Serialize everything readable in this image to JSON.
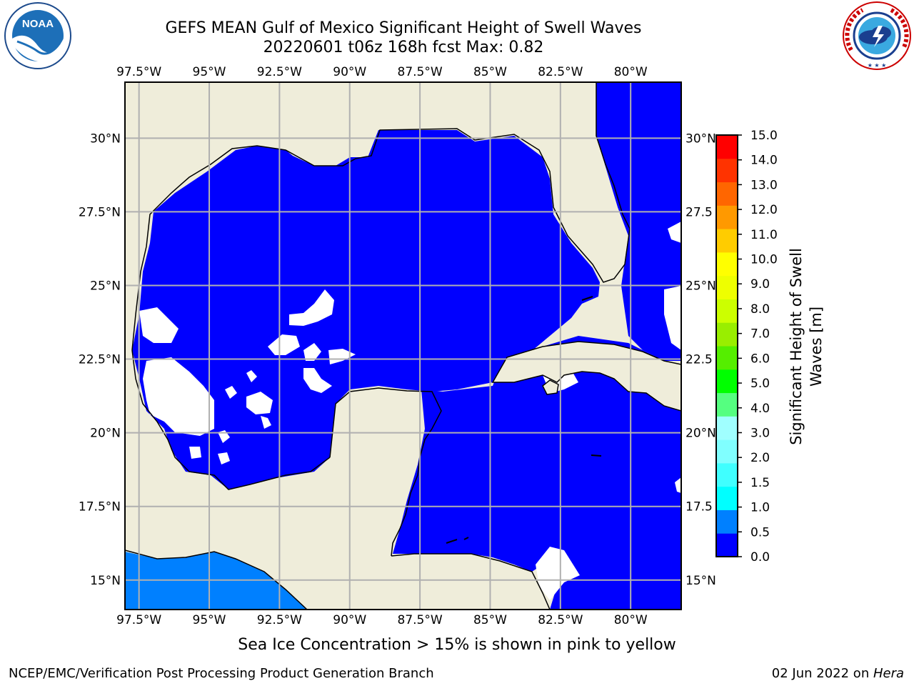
{
  "title": {
    "line1": "GEFS MEAN Gulf of Mexico Significant Height of Swell Waves",
    "line2": "20220601 t06z 168h fcst   Max: 0.82"
  },
  "logos": {
    "left": "noaa-logo",
    "left_text": "NOAA",
    "right": "nws-logo",
    "right_text": "NATIONAL WEATHER SERVICE"
  },
  "map": {
    "lon_ticks": [
      "97.5°W",
      "95°W",
      "92.5°W",
      "90°W",
      "87.5°W",
      "85°W",
      "82.5°W",
      "80°W"
    ],
    "lon_values": [
      -97.5,
      -95,
      -92.5,
      -90,
      -87.5,
      -85,
      -82.5,
      -80
    ],
    "lat_ticks_left": [
      "30°N",
      "27.5°N",
      "25°N",
      "22.5°N",
      "20°N",
      "17.5°N",
      "15°N"
    ],
    "lat_ticks_right": [
      "30°N",
      "27.5",
      "25°N",
      "22.5",
      "20°N",
      "17.5",
      "15°N"
    ],
    "lat_values": [
      30,
      27.5,
      25,
      22.5,
      20,
      17.5,
      15
    ],
    "lon_range": [
      -98,
      -78.2
    ],
    "lat_range": [
      14,
      31.9
    ],
    "colors": {
      "land": "#efedda",
      "ocean_low": "#0000ff",
      "ocean_mid": "#0080ff",
      "grid": "#b0b0b0",
      "nodata": "#ffffff"
    }
  },
  "colorbar": {
    "label": "Significant Height of Swell Waves [m]",
    "label_line1": "Significant Height of Swell",
    "label_line2": "Waves [m]",
    "ticks": [
      "15.0",
      "14.0",
      "13.0",
      "12.0",
      "11.0",
      "10.0",
      "9.0",
      "8.0",
      "7.0",
      "6.0",
      "5.0",
      "4.0",
      "3.0",
      "2.0",
      "1.5",
      "1.0",
      "0.5",
      "0.0"
    ],
    "colors_bottom_to_top": [
      "#0000ff",
      "#0080ff",
      "#00ffff",
      "#40ffff",
      "#80ffff",
      "#a0ffff",
      "#55ff80",
      "#00ff00",
      "#55ee00",
      "#99ee00",
      "#ccff00",
      "#eeff00",
      "#ffff00",
      "#ffcc00",
      "#ff9900",
      "#ff6600",
      "#ff3300",
      "#ff0000"
    ]
  },
  "note": "Sea Ice Concentration > 15% is shown in pink to yellow",
  "footer": {
    "left": "NCEP/EMC/Verification Post Processing Product Generation Branch",
    "right_date": "02 Jun 2022 on ",
    "right_machine": "Hera"
  }
}
